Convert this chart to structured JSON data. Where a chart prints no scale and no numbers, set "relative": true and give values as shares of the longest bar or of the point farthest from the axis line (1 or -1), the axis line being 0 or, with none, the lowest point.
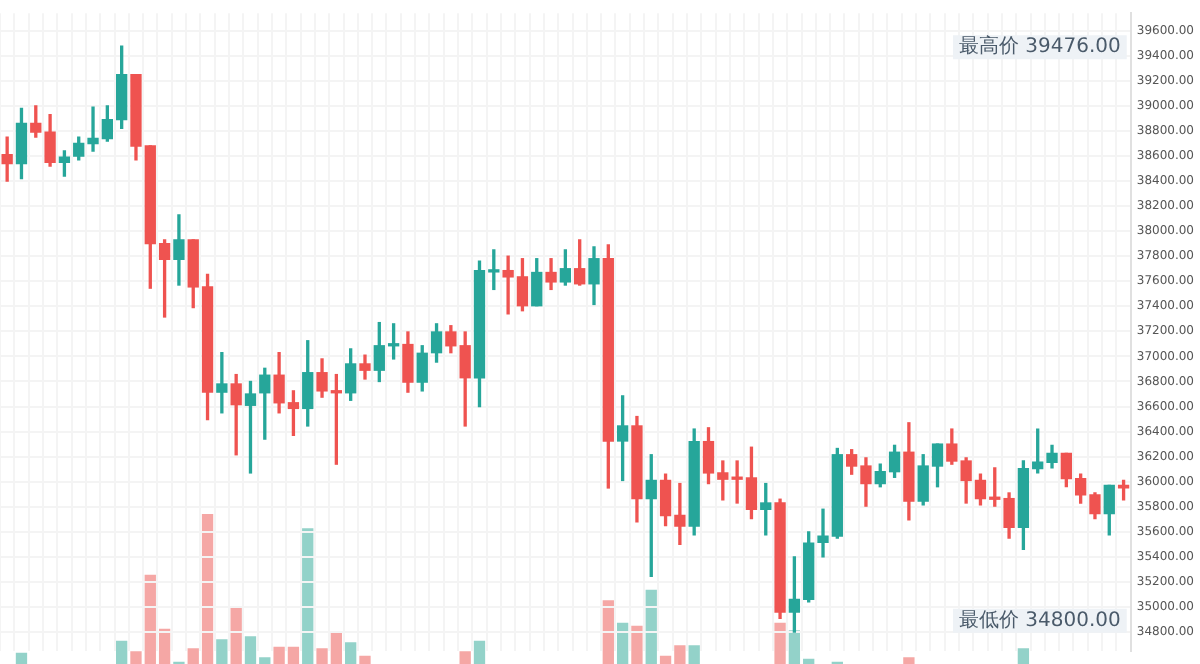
{
  "chart_data": [
    {
      "type": "candlestick",
      "grid": true,
      "legend": false,
      "tick_labels": "y",
      "categories": [
        null,
        null,
        null,
        null,
        null,
        null,
        null,
        null,
        null,
        null,
        null,
        null,
        null,
        null,
        null,
        null,
        null,
        null,
        null,
        null,
        null,
        null,
        null,
        null,
        null,
        null,
        null,
        null,
        null,
        null,
        null,
        null,
        null,
        null,
        null,
        null,
        null,
        null,
        null,
        null,
        null,
        null,
        null,
        null,
        null,
        null,
        null,
        null,
        null,
        null,
        null,
        null,
        null,
        null,
        null,
        null,
        null,
        null,
        null,
        null,
        null,
        null,
        null,
        null,
        null,
        null,
        null,
        null,
        null,
        null,
        null,
        null,
        null,
        null,
        null,
        null,
        null,
        null,
        null
      ],
      "ylim": [
        34650,
        39740
      ],
      "yticks": [
        {
          "value": 34800,
          "label": "34800.00"
        },
        {
          "value": 35000,
          "label": "35000.00"
        },
        {
          "value": 35200,
          "label": "35200.00"
        },
        {
          "value": 35400,
          "label": "35400.00"
        },
        {
          "value": 35600,
          "label": "35600.00"
        },
        {
          "value": 35800,
          "label": "35800.00"
        },
        {
          "value": 36000,
          "label": "36000.00"
        },
        {
          "value": 36200,
          "label": "36200.00"
        },
        {
          "value": 36400,
          "label": "36400.00"
        },
        {
          "value": 36600,
          "label": "36600.00"
        },
        {
          "value": 36800,
          "label": "36800.00"
        },
        {
          "value": 37000,
          "label": "37000.00"
        },
        {
          "value": 37200,
          "label": "37200.00"
        },
        {
          "value": 37400,
          "label": "37400.00"
        },
        {
          "value": 37600,
          "label": "37600.00"
        },
        {
          "value": 37800,
          "label": "37800.00"
        },
        {
          "value": 38000,
          "label": "38000.00"
        },
        {
          "value": 38200,
          "label": "38200.00"
        },
        {
          "value": 38400,
          "label": "38400.00"
        },
        {
          "value": 38600,
          "label": "38600.00"
        },
        {
          "value": 38800,
          "label": "38800.00"
        },
        {
          "value": 39000,
          "label": "39000.00"
        },
        {
          "value": 39200,
          "label": "39200.00"
        },
        {
          "value": 39400,
          "label": "39400.00"
        },
        {
          "value": 39600,
          "label": "39600.00"
        }
      ],
      "annotations": [
        "最高价 39476.00",
        "最低价 34800.00"
      ],
      "ohlc": [
        [
          38610,
          38750,
          38400,
          38540
        ],
        [
          38540,
          38980,
          38420,
          38860
        ],
        [
          38860,
          39000,
          38750,
          38790
        ],
        [
          38790,
          38930,
          38520,
          38550
        ],
        [
          38550,
          38640,
          38440,
          38590
        ],
        [
          38600,
          38750,
          38570,
          38700
        ],
        [
          38700,
          38990,
          38640,
          38740
        ],
        [
          38740,
          39000,
          38720,
          38890
        ],
        [
          38890,
          39476,
          38820,
          39250
        ],
        [
          39250,
          39250,
          38570,
          38680
        ],
        [
          38680,
          38680,
          37545,
          37900
        ],
        [
          37900,
          37930,
          37315,
          37775
        ],
        [
          37775,
          38130,
          37570,
          37930
        ],
        [
          37930,
          37930,
          37390,
          37555
        ],
        [
          37555,
          37655,
          36495,
          36715
        ],
        [
          36715,
          37030,
          36550,
          36780
        ],
        [
          36780,
          36855,
          36215,
          36615
        ],
        [
          36610,
          36800,
          36070,
          36700
        ],
        [
          36710,
          36905,
          36340,
          36850
        ],
        [
          36850,
          37030,
          36550,
          36630
        ],
        [
          36630,
          36725,
          36370,
          36585
        ],
        [
          36585,
          37125,
          36445,
          36870
        ],
        [
          36870,
          36980,
          36675,
          36725
        ],
        [
          36725,
          36855,
          36140,
          36710
        ],
        [
          36710,
          37060,
          36650,
          36940
        ],
        [
          36940,
          37010,
          36820,
          36890
        ],
        [
          36890,
          37270,
          36800,
          37085
        ],
        [
          37085,
          37260,
          36980,
          37095
        ],
        [
          37095,
          37195,
          36715,
          36795
        ],
        [
          36795,
          37085,
          36725,
          37025
        ],
        [
          37030,
          37260,
          36955,
          37195
        ],
        [
          37195,
          37245,
          37030,
          37085
        ],
        [
          37085,
          37195,
          36445,
          36830
        ],
        [
          36830,
          37760,
          36600,
          37685
        ],
        [
          37675,
          37850,
          37535,
          37690
        ],
        [
          37685,
          37800,
          37340,
          37635
        ],
        [
          37635,
          37780,
          37365,
          37405
        ],
        [
          37405,
          37780,
          37405,
          37670
        ],
        [
          37670,
          37780,
          37535,
          37595
        ],
        [
          37595,
          37850,
          37570,
          37700
        ],
        [
          37700,
          37930,
          37570,
          37580
        ],
        [
          37580,
          37875,
          37415,
          37780
        ],
        [
          37780,
          37890,
          35950,
          36325
        ],
        [
          36325,
          36685,
          36010,
          36445
        ],
        [
          36445,
          36520,
          35680,
          35865
        ],
        [
          35865,
          36215,
          35245,
          36010
        ],
        [
          36010,
          36060,
          35650,
          35730
        ],
        [
          35730,
          35985,
          35500,
          35645
        ],
        [
          35645,
          36420,
          35575,
          36320
        ],
        [
          36320,
          36430,
          35985,
          36070
        ],
        [
          36070,
          36165,
          35855,
          36020
        ],
        [
          36030,
          36165,
          35830,
          36020
        ],
        [
          36030,
          36275,
          35705,
          35780
        ],
        [
          35780,
          35985,
          35575,
          35830
        ],
        [
          35830,
          35860,
          34910,
          34960
        ],
        [
          34960,
          35400,
          34800,
          35060
        ],
        [
          35060,
          35600,
          35040,
          35510
        ],
        [
          35515,
          35780,
          35400,
          35565
        ],
        [
          35565,
          36265,
          35550,
          36215
        ],
        [
          36215,
          36255,
          36060,
          36125
        ],
        [
          36125,
          36190,
          35805,
          35985
        ],
        [
          35985,
          36140,
          35960,
          36080
        ],
        [
          36080,
          36290,
          36035,
          36235
        ],
        [
          36235,
          36470,
          35695,
          35845
        ],
        [
          35845,
          36215,
          35815,
          36125
        ],
        [
          36125,
          36300,
          35960,
          36300
        ],
        [
          36300,
          36420,
          36140,
          36165
        ],
        [
          36165,
          36190,
          35830,
          36010
        ],
        [
          36010,
          36060,
          35815,
          35865
        ],
        [
          35865,
          36110,
          35805,
          35860
        ],
        [
          35865,
          35910,
          35550,
          35635
        ],
        [
          35635,
          36165,
          35460,
          36105
        ],
        [
          36105,
          36420,
          36070,
          36155
        ],
        [
          36155,
          36290,
          36110,
          36225
        ],
        [
          36225,
          36225,
          35960,
          36025
        ],
        [
          36025,
          36060,
          35830,
          35895
        ],
        [
          35895,
          35910,
          35705,
          35745
        ],
        [
          35745,
          35970,
          35575,
          35970
        ],
        [
          35970,
          36010,
          35855,
          35950
        ]
      ],
      "colors": [
        "#ef5350",
        "#26a69a",
        "#ef5350",
        "#ef5350",
        "#26a69a",
        "#26a69a",
        "#26a69a",
        "#26a69a",
        "#26a69a",
        "#ef5350",
        "#ef5350",
        "#ef5350",
        "#26a69a",
        "#ef5350",
        "#ef5350",
        "#26a69a",
        "#ef5350",
        "#26a69a",
        "#26a69a",
        "#ef5350",
        "#ef5350",
        "#26a69a",
        "#ef5350",
        "#ef5350",
        "#26a69a",
        "#ef5350",
        "#26a69a",
        "#26a69a",
        "#ef5350",
        "#26a69a",
        "#26a69a",
        "#ef5350",
        "#ef5350",
        "#26a69a",
        "#26a69a",
        "#ef5350",
        "#ef5350",
        "#26a69a",
        "#ef5350",
        "#26a69a",
        "#ef5350",
        "#26a69a",
        "#ef5350",
        "#26a69a",
        "#ef5350",
        "#26a69a",
        "#ef5350",
        "#ef5350",
        "#26a69a",
        "#ef5350",
        "#ef5350",
        "#ef5350",
        "#ef5350",
        "#26a69a",
        "#ef5350",
        "#26a69a",
        "#26a69a",
        "#26a69a",
        "#26a69a",
        "#ef5350",
        "#ef5350",
        "#26a69a",
        "#26a69a",
        "#ef5350",
        "#26a69a",
        "#26a69a",
        "#ef5350",
        "#ef5350",
        "#ef5350",
        "#ef5350",
        "#ef5350",
        "#26a69a",
        "#26a69a",
        "#26a69a",
        "#ef5350",
        "#ef5350",
        "#ef5350",
        "#26a69a",
        "#ef5350"
      ]
    },
    {
      "type": "bar",
      "relative": true,
      "tick_labels": false,
      "categories": [
        null,
        null,
        null,
        null,
        null,
        null,
        null,
        null,
        null,
        null,
        null,
        null,
        null,
        null,
        null,
        null,
        null,
        null,
        null,
        null,
        null,
        null,
        null,
        null,
        null,
        null,
        null,
        null,
        null,
        null,
        null,
        null,
        null,
        null,
        null,
        null,
        null,
        null,
        null,
        null,
        null,
        null,
        null,
        null,
        null,
        null,
        null,
        null,
        null,
        null,
        null,
        null,
        null,
        null,
        null,
        null,
        null,
        null,
        null,
        null,
        null,
        null,
        null,
        null,
        null,
        null,
        null,
        null,
        null,
        null,
        null,
        null,
        null,
        null,
        null,
        null,
        null,
        null,
        null
      ],
      "values": [
        null,
        0.07,
        null,
        null,
        null,
        null,
        null,
        null,
        0.15,
        0.08,
        0.59,
        0.23,
        0.01,
        0.1,
        1,
        0.16,
        0.38,
        0.18,
        0.04,
        0.11,
        0.11,
        0.9,
        0.1,
        0.21,
        0.14,
        0.05,
        null,
        null,
        null,
        null,
        null,
        null,
        0.08,
        0.15,
        null,
        null,
        null,
        null,
        null,
        null,
        null,
        null,
        0.42,
        0.27,
        0.25,
        0.49,
        0.05,
        0.12,
        0.12,
        null,
        null,
        null,
        null,
        null,
        0.27,
        0.22,
        0.03,
        null,
        0.01,
        null,
        null,
        null,
        null,
        0.04,
        null,
        null,
        null,
        null,
        null,
        null,
        null,
        0.1,
        null,
        null,
        null,
        null,
        null,
        null,
        null
      ],
      "colors": [
        null,
        "#93d2c9",
        null,
        null,
        null,
        null,
        null,
        null,
        "#93d2c9",
        "#f5a7a5",
        "#f5a7a5",
        "#f5a7a5",
        "#93d2c9",
        "#f5a7a5",
        "#f5a7a5",
        "#93d2c9",
        "#f5a7a5",
        "#93d2c9",
        "#93d2c9",
        "#f5a7a5",
        "#f5a7a5",
        "#93d2c9",
        "#f5a7a5",
        "#f5a7a5",
        "#93d2c9",
        "#f5a7a5",
        null,
        null,
        null,
        null,
        null,
        null,
        "#f5a7a5",
        "#93d2c9",
        null,
        null,
        null,
        null,
        null,
        null,
        null,
        null,
        "#f5a7a5",
        "#93d2c9",
        "#f5a7a5",
        "#93d2c9",
        "#f5a7a5",
        "#f5a7a5",
        "#93d2c9",
        null,
        null,
        null,
        null,
        null,
        "#f5a7a5",
        "#93d2c9",
        "#93d2c9",
        null,
        "#93d2c9",
        null,
        null,
        null,
        null,
        "#f5a7a5",
        null,
        null,
        null,
        null,
        null,
        null,
        null,
        "#93d2c9",
        null,
        null,
        null,
        null,
        null,
        null,
        null
      ]
    }
  ]
}
